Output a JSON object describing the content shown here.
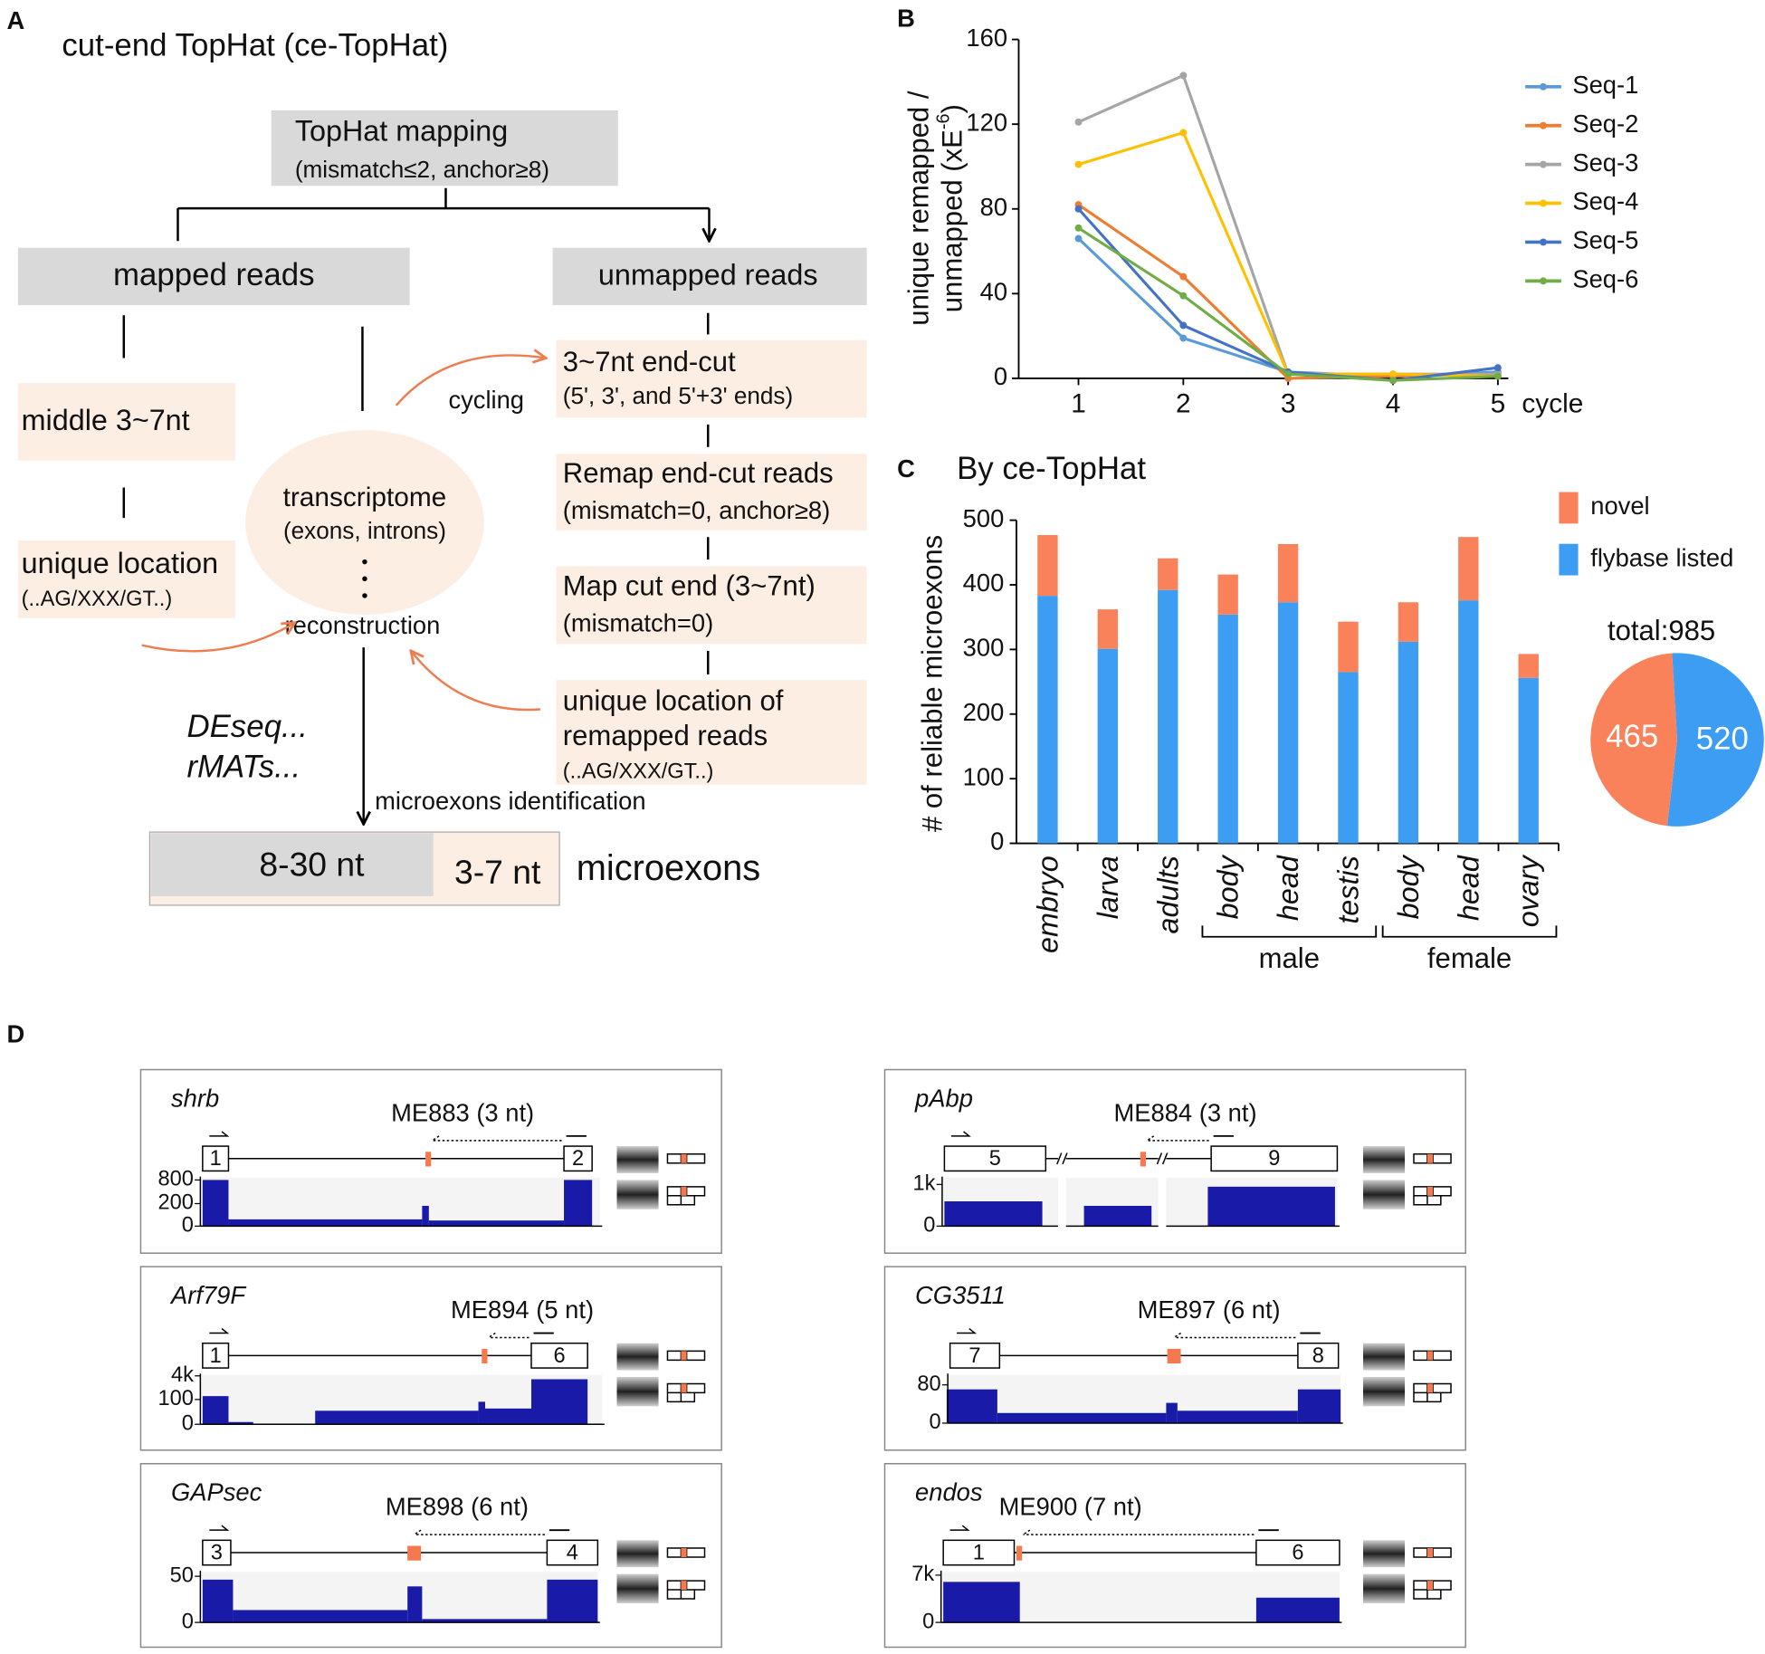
{
  "panel_a": {
    "label": "A",
    "title": "cut-end TopHat (ce-TopHat)",
    "tophat": [
      "TopHat mapping",
      "(mismatch≤2, anchor≥8)"
    ],
    "mapped": "mapped reads",
    "unmapped": "unmapped reads",
    "middle": "middle 3~7nt",
    "unique_left": [
      "unique location",
      "(..AG/XXX/GT..)"
    ],
    "transcriptome": [
      "transcriptome",
      "(exons, introns)"
    ],
    "reconstruction": "reconstruction",
    "cycling": "cycling",
    "endcut": [
      "3~7nt end-cut",
      "(5', 3', and 5'+3' ends)"
    ],
    "remap": [
      "Remap end-cut reads",
      "(mismatch=0, anchor≥8)"
    ],
    "mapcut": [
      "Map cut end (3~7nt)",
      "(mismatch=0)"
    ],
    "unique_right": [
      "unique location of",
      "remapped reads",
      "(..AG/XXX/GT..)"
    ],
    "tools": [
      "DEseq...",
      "rMATs..."
    ],
    "identification": "microexons identification",
    "long": "8-30 nt",
    "short": "3-7 nt",
    "microexons": "microexons"
  },
  "chart_data": [
    {
      "type": "line",
      "panel": "B",
      "ylabel": {
        "line1": "unique remapped /",
        "line2": "unmapped (xE",
        "sup": "-6",
        "end": ")"
      },
      "xlabel": "cycle",
      "x": [
        1,
        2,
        3,
        4,
        5
      ],
      "xlim": [
        0.43,
        5.1
      ],
      "xticks": [
        1,
        2,
        3,
        4,
        5
      ],
      "ylim": [
        0,
        160
      ],
      "yticks": [
        0,
        40,
        80,
        120,
        160
      ],
      "grid": false,
      "legend": "right",
      "series": [
        {
          "name": "Seq-1",
          "color": "#5b9bd5",
          "values": [
            66,
            19,
            3,
            1,
            3
          ]
        },
        {
          "name": "Seq-2",
          "color": "#ed7d31",
          "values": [
            82,
            48,
            0,
            1,
            2
          ]
        },
        {
          "name": "Seq-3",
          "color": "#a5a5a5",
          "values": [
            121,
            143,
            2,
            2,
            2
          ]
        },
        {
          "name": "Seq-4",
          "color": "#ffc000",
          "values": [
            101,
            116,
            2,
            2,
            1
          ]
        },
        {
          "name": "Seq-5",
          "color": "#4472c4",
          "values": [
            80,
            25,
            3,
            -1,
            5
          ]
        },
        {
          "name": "Seq-6",
          "color": "#70ad47",
          "values": [
            71,
            39,
            2,
            -1,
            1
          ]
        }
      ]
    },
    {
      "type": "stacked_bar",
      "panel": "C",
      "title": "By ce-TopHat",
      "ylabel": "# of reliable microexons",
      "categories": [
        "embryo",
        "larva",
        "adults",
        "body",
        "head",
        "testis",
        "body",
        "head",
        "ovary"
      ],
      "group_labels": [
        "male",
        "female"
      ],
      "ylim": [
        0,
        500
      ],
      "yticks": [
        0,
        100,
        200,
        300,
        400,
        500
      ],
      "grid": false,
      "legend": "right",
      "series": [
        {
          "name": "flybase listed",
          "color": "#3d9df3",
          "values": [
            383,
            301,
            392,
            354,
            373,
            265,
            312,
            376,
            256
          ]
        },
        {
          "name": "novel",
          "color": "#f9825a",
          "values": [
            94,
            61,
            49,
            62,
            90,
            78,
            61,
            98,
            37
          ]
        }
      ]
    },
    {
      "type": "pie",
      "title": "total:985",
      "categories": [
        "novel",
        "flybase listed"
      ],
      "values": [
        465,
        520
      ],
      "colors": [
        "#f9825a",
        "#3d9df3"
      ]
    }
  ],
  "panel_d": {
    "label": "D",
    "tracks": [
      {
        "gene": "shrb",
        "microexon": "ME883 (3 nt)",
        "exons": [
          1,
          2
        ],
        "yticks": [
          800,
          200,
          0
        ]
      },
      {
        "gene": "Arf79F",
        "microexon": "ME894 (5 nt)",
        "exons": [
          1,
          6
        ],
        "yticks": [
          "4k",
          100,
          0
        ]
      },
      {
        "gene": "GAPsec",
        "microexon": "ME898 (6 nt)",
        "exons": [
          3,
          4
        ],
        "yticks": [
          50,
          0
        ]
      },
      {
        "gene": "pAbp",
        "microexon": "ME884 (3 nt)",
        "exons": [
          5,
          9
        ],
        "yticks": [
          "1k",
          0
        ]
      },
      {
        "gene": "CG3511",
        "microexon": "ME897 (6 nt)",
        "exons": [
          7,
          8
        ],
        "yticks": [
          80,
          0
        ]
      },
      {
        "gene": "endos",
        "microexon": "ME900 (7 nt)",
        "exons": [
          1,
          6
        ],
        "yticks": [
          "7k",
          0
        ]
      }
    ]
  }
}
